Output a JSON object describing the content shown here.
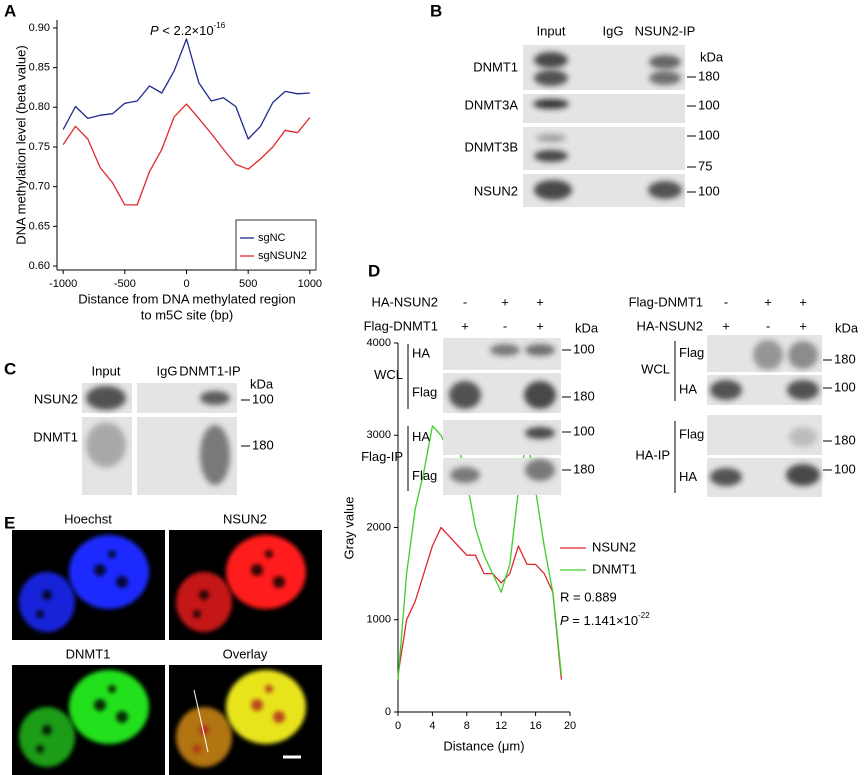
{
  "panel_labels": [
    "A",
    "B",
    "C",
    "D",
    "E"
  ],
  "chart_data": [
    {
      "type": "line",
      "xlabel": [
        "Distance from DNA methylated region",
        "to m5C site (bp)"
      ],
      "ylabel": "DNA methylation level (beta value)",
      "annotation": {
        "symbol": "P",
        "text": " < 2.2×10",
        "exponent": "-16"
      },
      "x": [
        -1000,
        -900,
        -800,
        -700,
        -600,
        -500,
        -400,
        -300,
        -200,
        -100,
        0,
        100,
        200,
        300,
        400,
        500,
        600,
        700,
        800,
        900,
        1000
      ],
      "series": [
        {
          "name": "sgNC",
          "color": "#1f2a8c",
          "values": [
            0.772,
            0.801,
            0.786,
            0.79,
            0.792,
            0.805,
            0.808,
            0.827,
            0.818,
            0.846,
            0.886,
            0.831,
            0.808,
            0.812,
            0.801,
            0.76,
            0.776,
            0.806,
            0.82,
            0.817,
            0.818
          ]
        },
        {
          "name": "sgNSUN2",
          "color": "#e0282c",
          "values": [
            0.753,
            0.776,
            0.76,
            0.724,
            0.705,
            0.677,
            0.677,
            0.719,
            0.747,
            0.788,
            0.804,
            0.786,
            0.767,
            0.747,
            0.728,
            0.722,
            0.735,
            0.75,
            0.771,
            0.768,
            0.787
          ]
        }
      ],
      "xlim": [
        -1050,
        1050
      ],
      "xticks": [
        -1000,
        -500,
        0,
        500,
        1000
      ],
      "ylim": [
        0.595,
        0.91
      ],
      "yticks": [
        {
          "value": 0.6,
          "label": "0.60"
        },
        0.65,
        {
          "value": 0.7,
          "label": "0.70"
        },
        0.75,
        {
          "value": 0.8,
          "label": "0.80"
        },
        0.85,
        {
          "value": 0.9,
          "label": "0.90"
        }
      ],
      "legend": "lower right"
    },
    {
      "type": "line",
      "xlabel": "Distance (μm)",
      "ylabel": "Gray value",
      "stats": {
        "r": "R = 0.889",
        "p_symbol": "P",
        "p_text": " = 1.141×10",
        "p_exponent": "-22"
      },
      "x": [
        0,
        1,
        2,
        3,
        4,
        5,
        6,
        7,
        8,
        9,
        10,
        11,
        12,
        13,
        14,
        15,
        16,
        17,
        18,
        19
      ],
      "series": [
        {
          "name": "NSUN2",
          "color": "#e0282c",
          "values": [
            400,
            1000,
            1200,
            1500,
            1800,
            2000,
            1900,
            1800,
            1700,
            1700,
            1500,
            1500,
            1400,
            1500,
            1800,
            1600,
            1600,
            1500,
            1300,
            350
          ]
        },
        {
          "name": "DNMT1",
          "color": "#3ccf2a",
          "values": [
            350,
            1500,
            2200,
            2600,
            3100,
            3000,
            2800,
            2900,
            2500,
            2000,
            1700,
            1500,
            1300,
            1600,
            2400,
            3000,
            2400,
            1800,
            1300,
            400
          ]
        }
      ],
      "xlim": [
        0,
        20
      ],
      "xticks": [
        0,
        4,
        8,
        12,
        16,
        20
      ],
      "ylim": [
        0,
        4000
      ],
      "yticks": [
        0,
        1000,
        2000,
        3000,
        4000
      ],
      "legend": "upper right"
    }
  ],
  "blot_b": {
    "lanes": [
      "Input",
      "IgG",
      "NSUN2-IP"
    ],
    "unit": "kDa",
    "rows": [
      "DNMT1",
      "DNMT3A",
      "DNMT3B",
      "NSUN2"
    ],
    "markers": [
      180,
      100,
      100,
      75,
      100
    ]
  },
  "blot_c": {
    "lanes": [
      "Input",
      "IgG",
      "DNMT1-IP"
    ],
    "unit": "kDa",
    "rows": [
      "NSUN2",
      "DNMT1"
    ],
    "markers": [
      100,
      180
    ]
  },
  "blot_d": {
    "left": {
      "conditions": [
        {
          "name": "HA-NSUN2",
          "signs": [
            "-",
            "+",
            "+"
          ]
        },
        {
          "name": "Flag-DNMT1",
          "signs": [
            "+",
            "-",
            "+"
          ]
        }
      ],
      "unit": "kDa",
      "groups": [
        {
          "name": "WCL",
          "rows": [
            "HA",
            "Flag"
          ]
        },
        {
          "name": "Flag-IP",
          "rows": [
            "HA",
            "Flag"
          ]
        }
      ],
      "markers": [
        100,
        180,
        100,
        180
      ]
    },
    "right": {
      "conditions": [
        {
          "name": "Flag-DNMT1",
          "signs": [
            "-",
            "+",
            "+"
          ]
        },
        {
          "name": "HA-NSUN2",
          "signs": [
            "+",
            "-",
            "+"
          ]
        }
      ],
      "unit": "kDa",
      "groups": [
        {
          "name": "WCL",
          "rows": [
            "Flag",
            "HA"
          ]
        },
        {
          "name": "HA-IP",
          "rows": [
            "Flag",
            "HA"
          ]
        }
      ],
      "markers": [
        180,
        100,
        180,
        100
      ]
    }
  },
  "images_e": {
    "channels": [
      "Hoechst",
      "NSUN2",
      "DNMT1",
      "Overlay"
    ]
  }
}
